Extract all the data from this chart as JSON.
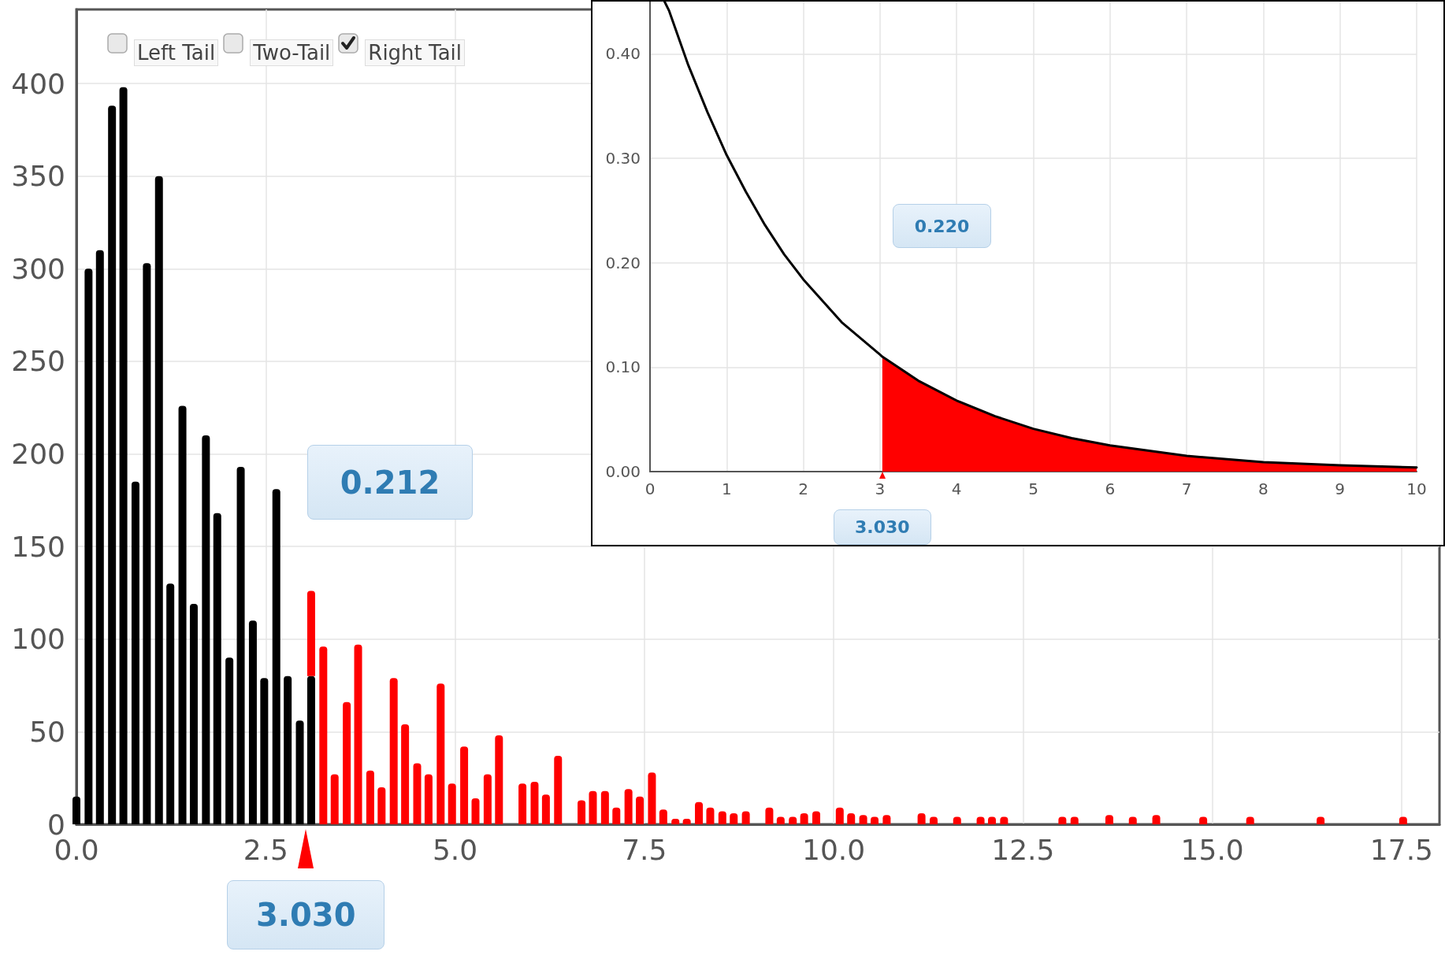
{
  "chart_data": [
    {
      "type": "bar",
      "stacked": true,
      "grid": true,
      "x": [
        0,
        0.16,
        0.31,
        0.47,
        0.62,
        0.78,
        0.93,
        1.09,
        1.24,
        1.4,
        1.55,
        1.71,
        1.86,
        2.02,
        2.17,
        2.33,
        2.48,
        2.64,
        2.79,
        2.95,
        3.1,
        3.26,
        3.41,
        3.57,
        3.72,
        3.88,
        4.03,
        4.19,
        4.34,
        4.5,
        4.65,
        4.81,
        4.96,
        5.12,
        5.27,
        5.43,
        5.58,
        5.89,
        6.05,
        6.2,
        6.36,
        6.67,
        6.82,
        6.98,
        7.13,
        7.29,
        7.44,
        7.6,
        7.75,
        7.91,
        8.06,
        8.22,
        8.37,
        8.53,
        8.68,
        8.84,
        9.15,
        9.3,
        9.46,
        9.61,
        9.77,
        10.08,
        10.23,
        10.39,
        10.54,
        10.7,
        11.16,
        11.32,
        11.63,
        11.94,
        12.09,
        12.25,
        13.02,
        13.18,
        13.64,
        13.95,
        14.26,
        14.88,
        15.5,
        16.43,
        17.52
      ],
      "series": [
        {
          "color": "#000000",
          "values": [
            15,
            300,
            310,
            388,
            398,
            185,
            303,
            350,
            130,
            226,
            119,
            210,
            168,
            90,
            193,
            110,
            79,
            181,
            80,
            56,
            80,
            null,
            null,
            null,
            null,
            null,
            null,
            null,
            null,
            null,
            null,
            null,
            null,
            null,
            null,
            null,
            null,
            null,
            null,
            null,
            null,
            null,
            null,
            null,
            null,
            null,
            null,
            null,
            null,
            null,
            null,
            null,
            null,
            null,
            null,
            null,
            null,
            null,
            null,
            null,
            null,
            null,
            null,
            null,
            null,
            null,
            null,
            null,
            null,
            null,
            null,
            null,
            null,
            null,
            null,
            null,
            null,
            null,
            null,
            null,
            null
          ]
        },
        {
          "color": "#ff0000",
          "values": [
            null,
            null,
            null,
            null,
            null,
            null,
            null,
            null,
            null,
            null,
            null,
            null,
            null,
            null,
            null,
            null,
            null,
            null,
            null,
            null,
            46,
            96,
            27,
            66,
            97,
            29,
            20,
            79,
            54,
            33,
            27,
            76,
            22,
            42,
            14,
            27,
            48,
            22,
            23,
            16,
            37,
            13,
            18,
            18,
            9,
            19,
            15,
            28,
            8,
            3,
            3,
            12,
            9,
            7,
            6,
            7,
            9,
            4,
            4,
            6,
            7,
            9,
            6,
            5,
            4,
            5,
            6,
            4,
            4,
            4,
            4,
            4,
            4,
            4,
            5,
            4,
            5,
            4,
            4,
            4,
            4
          ]
        }
      ],
      "xlim": [
        0,
        18
      ],
      "xticks": [
        {
          "value": 0,
          "label": "0.0"
        },
        2.5,
        {
          "value": 5,
          "label": "5.0"
        },
        7.5,
        {
          "value": 10,
          "label": "10.0"
        },
        12.5,
        {
          "value": 15,
          "label": "15.0"
        },
        17.5
      ],
      "ylim": [
        0,
        440
      ],
      "yticks": [
        0,
        50,
        100,
        150,
        200,
        250,
        300,
        350,
        400
      ],
      "annotations": [
        "Left Tail",
        "Two-Tail",
        "Right Tail",
        "0.212",
        {
          "text": "3.030",
          "x": 3.03,
          "y": 0
        }
      ]
    },
    {
      "type": "line",
      "grid": true,
      "series": [
        {
          "color": "#000000",
          "x": [
            0.19,
            0.25,
            0.5,
            0.75,
            1,
            1.25,
            1.5,
            1.75,
            2,
            2.5,
            3,
            3.03,
            3.5,
            4,
            4.5,
            5,
            5.5,
            6,
            7,
            8,
            9,
            10
          ],
          "values": [
            0.45,
            0.441,
            0.389,
            0.344,
            0.303,
            0.268,
            0.236,
            0.208,
            0.184,
            0.143,
            0.112,
            0.11,
            0.087,
            0.068,
            0.053,
            0.041,
            0.032,
            0.025,
            0.015,
            0.009,
            0.006,
            0.004
          ]
        },
        {
          "type": "area",
          "color": "#ff0000",
          "x": [
            3.03,
            3.5,
            4,
            4.5,
            5,
            5.5,
            6,
            7,
            8,
            9,
            10
          ],
          "values": [
            0.11,
            0.087,
            0.068,
            0.053,
            0.041,
            0.032,
            0.025,
            0.015,
            0.009,
            0.006,
            0.004
          ]
        }
      ],
      "xlim": [
        0,
        10
      ],
      "xticks": [
        0,
        1,
        2,
        3,
        4,
        5,
        6,
        7,
        8,
        9,
        10
      ],
      "ylim": [
        0,
        0.45
      ],
      "yticks": [
        {
          "value": 0,
          "label": "0.00"
        },
        {
          "value": 0.1,
          "label": "0.10"
        },
        {
          "value": 0.2,
          "label": "0.20"
        },
        {
          "value": 0.3,
          "label": "0.30"
        },
        {
          "value": 0.4,
          "label": "0.40"
        }
      ],
      "annotations": [
        "0.220",
        {
          "text": "3.030",
          "x": 3.03,
          "y": 0
        }
      ]
    }
  ]
}
